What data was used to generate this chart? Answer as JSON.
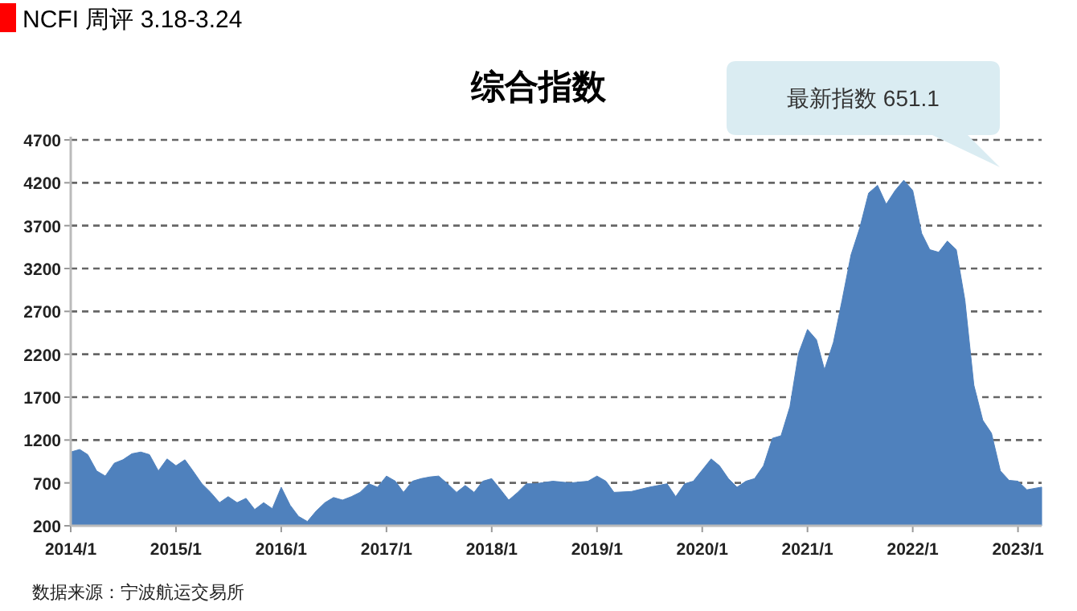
{
  "chart_data": {
    "type": "area",
    "title": "综合指数",
    "subtitle": "NCFI 周评 3.18-3.24",
    "annotations": [
      "最新指数 651.1",
      "数据来源：宁波航运交易所"
    ],
    "x": [
      "2014-01",
      "2014-02",
      "2014-03",
      "2014-04",
      "2014-05",
      "2014-06",
      "2014-07",
      "2014-08",
      "2014-09",
      "2014-10",
      "2014-11",
      "2014-12",
      "2015-01",
      "2015-02",
      "2015-03",
      "2015-04",
      "2015-05",
      "2015-06",
      "2015-07",
      "2015-08",
      "2015-09",
      "2015-10",
      "2015-11",
      "2015-12",
      "2016-01",
      "2016-02",
      "2016-03",
      "2016-04",
      "2016-05",
      "2016-06",
      "2016-07",
      "2016-08",
      "2016-09",
      "2016-10",
      "2016-11",
      "2016-12",
      "2017-01",
      "2017-02",
      "2017-03",
      "2017-04",
      "2017-05",
      "2017-06",
      "2017-07",
      "2017-08",
      "2017-09",
      "2017-10",
      "2017-11",
      "2017-12",
      "2018-01",
      "2018-02",
      "2018-03",
      "2018-04",
      "2018-05",
      "2018-06",
      "2018-08",
      "2018-10",
      "2018-12",
      "2019-01",
      "2019-02",
      "2019-03",
      "2019-05",
      "2019-07",
      "2019-09",
      "2019-10",
      "2019-11",
      "2019-12",
      "2020-02",
      "2020-03",
      "2020-04",
      "2020-05",
      "2020-06",
      "2020-07",
      "2020-08",
      "2020-09",
      "2020-10",
      "2020-11",
      "2020-12",
      "2021-01",
      "2021-02",
      "2021-03",
      "2021-04",
      "2021-05",
      "2021-06",
      "2021-07",
      "2021-08",
      "2021-09",
      "2021-10",
      "2021-11",
      "2021-12",
      "2022-01",
      "2022-02",
      "2022-03",
      "2022-04",
      "2022-05",
      "2022-06",
      "2022-07",
      "2022-08",
      "2022-09",
      "2022-10",
      "2022-11",
      "2022-12",
      "2023-01",
      "2023-02",
      "2023-03-24"
    ],
    "series": [
      {
        "color": "#4f81bd",
        "values": [
          1060,
          1090,
          1030,
          840,
          780,
          930,
          970,
          1040,
          1060,
          1030,
          840,
          980,
          900,
          970,
          840,
          690,
          590,
          470,
          540,
          470,
          520,
          390,
          470,
          400,
          650,
          440,
          310,
          250,
          370,
          470,
          530,
          500,
          540,
          590,
          690,
          650,
          780,
          720,
          590,
          720,
          750,
          770,
          780,
          690,
          590,
          670,
          590,
          720,
          750,
          620,
          500,
          590,
          690,
          690,
          720,
          700,
          720,
          780,
          720,
          590,
          600,
          650,
          690,
          540,
          690,
          720,
          980,
          900,
          750,
          650,
          720,
          750,
          900,
          1220,
          1250,
          1590,
          2210,
          2490,
          2370,
          2020,
          2340,
          2830,
          3360,
          3670,
          4080,
          4170,
          3950,
          4110,
          4230,
          4110,
          3610,
          3420,
          3390,
          3520,
          3420,
          2830,
          1840,
          1430,
          1280,
          840,
          730,
          720,
          620,
          651.1
        ]
      }
    ],
    "xlim": [
      "2014-01",
      "2023-03-24"
    ],
    "xticks": [
      {
        "value": "2014-01",
        "label": "2014/1"
      },
      {
        "value": "2015-01",
        "label": "2015/1"
      },
      {
        "value": "2016-01",
        "label": "2016/1"
      },
      {
        "value": "2017-01",
        "label": "2017/1"
      },
      {
        "value": "2018-01",
        "label": "2018/1"
      },
      {
        "value": "2019-01",
        "label": "2019/1"
      },
      {
        "value": "2020-01",
        "label": "2020/1"
      },
      {
        "value": "2021-01",
        "label": "2021/1"
      },
      {
        "value": "2022-01",
        "label": "2022/1"
      },
      {
        "value": "2023-01",
        "label": "2023/1"
      }
    ],
    "ylim": [
      200,
      4700
    ],
    "yticks": [
      200,
      700,
      1200,
      1700,
      2200,
      2700,
      3200,
      3700,
      4200,
      4700
    ],
    "grid": "y",
    "line_style": "dashed"
  }
}
